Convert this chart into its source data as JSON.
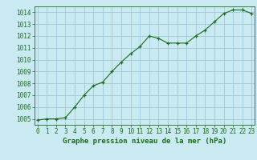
{
  "x": [
    0,
    1,
    2,
    3,
    4,
    5,
    6,
    7,
    8,
    9,
    10,
    11,
    12,
    13,
    14,
    15,
    16,
    17,
    18,
    19,
    20,
    21,
    22,
    23
  ],
  "y": [
    1004.9,
    1005.0,
    1005.0,
    1005.1,
    1006.0,
    1007.0,
    1007.8,
    1008.1,
    1009.0,
    1009.8,
    1010.5,
    1011.1,
    1012.0,
    1011.8,
    1011.4,
    1011.4,
    1011.4,
    1012.0,
    1012.5,
    1013.2,
    1013.9,
    1014.2,
    1014.2,
    1013.9
  ],
  "line_color": "#1a6b1a",
  "marker": "+",
  "bg_color": "#c8eaf0",
  "grid_color": "#a0c8d8",
  "xlabel": "Graphe pression niveau de la mer (hPa)",
  "xlabel_color": "#1a6b1a",
  "tick_color": "#1a6b1a",
  "ylim": [
    1004.5,
    1014.5
  ],
  "yticks": [
    1005,
    1006,
    1007,
    1008,
    1009,
    1010,
    1011,
    1012,
    1013,
    1014
  ],
  "xticks": [
    0,
    1,
    2,
    3,
    4,
    5,
    6,
    7,
    8,
    9,
    10,
    11,
    12,
    13,
    14,
    15,
    16,
    17,
    18,
    19,
    20,
    21,
    22,
    23
  ],
  "xlim": [
    -0.3,
    23.3
  ],
  "label_fontsize": 6.5,
  "tick_fontsize": 5.5
}
